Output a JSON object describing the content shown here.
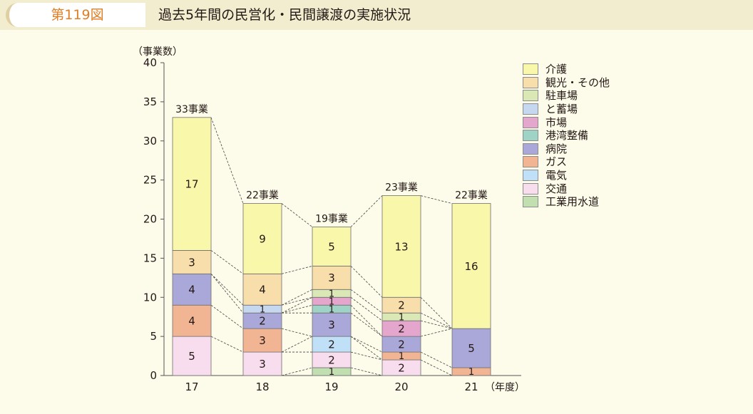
{
  "header": {
    "figure_number": "第119図",
    "title": "過去5年間の民営化・民間譲渡の実施状況"
  },
  "chart_data": {
    "type": "bar",
    "stacked": true,
    "ylabel": "（事業数）",
    "xlabel": "（年度）",
    "ylim": [
      0,
      40
    ],
    "yticks": [
      0,
      5,
      10,
      15,
      20,
      25,
      30,
      35,
      40
    ],
    "categories": [
      "17",
      "18",
      "19",
      "20",
      "21"
    ],
    "totals": [
      33,
      22,
      19,
      23,
      22
    ],
    "total_suffix": "事業",
    "legend_position": "right",
    "series": [
      {
        "name": "工業用水道",
        "color": "#c2dfb2",
        "values": [
          0,
          0,
          1,
          0,
          0
        ]
      },
      {
        "name": "交通",
        "color": "#f7dded",
        "values": [
          5,
          3,
          2,
          2,
          0
        ]
      },
      {
        "name": "電気",
        "color": "#bfe0f6",
        "values": [
          0,
          0,
          2,
          0,
          0
        ]
      },
      {
        "name": "ガス",
        "color": "#f2b594",
        "values": [
          4,
          3,
          0,
          1,
          1
        ]
      },
      {
        "name": "病院",
        "color": "#a9a8d8",
        "values": [
          4,
          2,
          3,
          2,
          5
        ]
      },
      {
        "name": "港湾整備",
        "color": "#9fd3c6",
        "values": [
          0,
          0,
          1,
          0,
          0
        ]
      },
      {
        "name": "市場",
        "color": "#e4a6cd",
        "values": [
          0,
          0,
          1,
          2,
          0
        ]
      },
      {
        "name": "と蓄場",
        "color": "#c5d8f0",
        "values": [
          0,
          1,
          0,
          0,
          0
        ]
      },
      {
        "name": "駐車場",
        "color": "#d9e8b4",
        "values": [
          0,
          0,
          1,
          1,
          0
        ]
      },
      {
        "name": "観光・その他",
        "color": "#f7deaa",
        "values": [
          3,
          4,
          3,
          2,
          0
        ]
      },
      {
        "name": "介護",
        "color": "#f9f7a9",
        "values": [
          17,
          9,
          5,
          13,
          16
        ]
      }
    ],
    "legend_order": [
      "介護",
      "観光・その他",
      "駐車場",
      "と蓄場",
      "市場",
      "港湾整備",
      "病院",
      "ガス",
      "電気",
      "交通",
      "工業用水道"
    ]
  }
}
